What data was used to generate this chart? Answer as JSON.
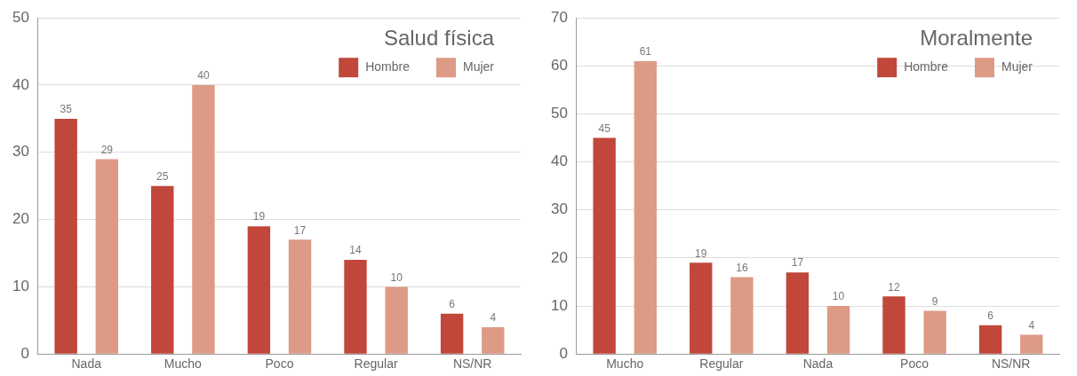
{
  "chart_data": [
    {
      "type": "bar",
      "title": "Salud física",
      "categories": [
        "Nada",
        "Mucho",
        "Poco",
        "Regular",
        "NS/NR"
      ],
      "series": [
        {
          "name": "Hombre",
          "color": "#c0473a",
          "values": [
            35,
            25,
            19,
            14,
            6
          ]
        },
        {
          "name": "Mujer",
          "color": "#dd9a85",
          "values": [
            29,
            40,
            17,
            10,
            4
          ]
        }
      ],
      "ylim": [
        0,
        50
      ],
      "yticks": [
        0,
        10,
        20,
        30,
        40,
        50
      ],
      "grid": "y",
      "legend": "top right",
      "data_labels": true
    },
    {
      "type": "bar",
      "title": "Moralmente",
      "categories": [
        "Mucho",
        "Regular",
        "Nada",
        "Poco",
        "NS/NR"
      ],
      "series": [
        {
          "name": "Hombre",
          "color": "#c0473a",
          "values": [
            45,
            19,
            17,
            12,
            6
          ]
        },
        {
          "name": "Mujer",
          "color": "#dd9a85",
          "values": [
            61,
            16,
            10,
            9,
            4
          ]
        }
      ],
      "ylim": [
        0,
        70
      ],
      "yticks": [
        0,
        10,
        20,
        30,
        40,
        50,
        60,
        70
      ],
      "grid": "y",
      "legend": "top right",
      "data_labels": true
    }
  ]
}
